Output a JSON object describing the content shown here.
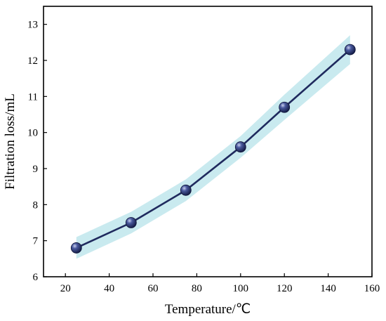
{
  "chart_data": {
    "type": "line",
    "title": "",
    "xlabel": "Temperature/℃",
    "ylabel": "Filtration loss/mL",
    "xlim": [
      10,
      160
    ],
    "ylim": [
      6,
      13.5
    ],
    "xticks": [
      20,
      40,
      60,
      80,
      100,
      120,
      140,
      160
    ],
    "yticks": [
      6,
      7,
      8,
      9,
      10,
      11,
      12,
      13
    ],
    "grid": false,
    "legend": "none",
    "series": [
      {
        "x": [
          25,
          50,
          75,
          100,
          120,
          150
        ],
        "y": [
          6.8,
          7.5,
          8.4,
          9.6,
          10.7,
          12.3
        ],
        "band": [
          0.3,
          0.3,
          0.3,
          0.3,
          0.35,
          0.4
        ],
        "line_color": "#1f2a5e",
        "marker_color": "#2b3a7a",
        "band_color": "#bfe6ec"
      }
    ]
  }
}
